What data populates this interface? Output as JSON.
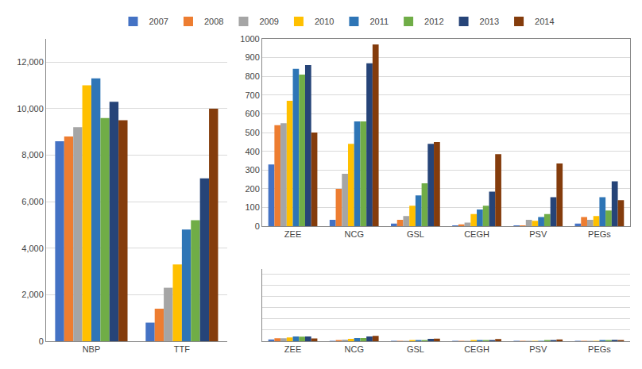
{
  "chart_data": [
    {
      "type": "bar",
      "categories": [
        "NBP",
        "TTF"
      ],
      "series": [
        {
          "name": "2007",
          "color": "#4472C4",
          "values": [
            8600,
            800
          ]
        },
        {
          "name": "2008",
          "color": "#ED7D31",
          "values": [
            8800,
            1400
          ]
        },
        {
          "name": "2009",
          "color": "#A5A5A5",
          "values": [
            9200,
            2300
          ]
        },
        {
          "name": "2010",
          "color": "#FFC000",
          "values": [
            11000,
            3300
          ]
        },
        {
          "name": "2011",
          "color": "#2E75B6",
          "values": [
            11300,
            4800
          ]
        },
        {
          "name": "2012",
          "color": "#70AD47",
          "values": [
            9600,
            5200
          ]
        },
        {
          "name": "2013",
          "color": "#264478",
          "values": [
            10300,
            7000
          ]
        },
        {
          "name": "2014",
          "color": "#843C0C",
          "values": [
            9500,
            10000
          ]
        }
      ],
      "ylim": [
        0,
        13000
      ],
      "yticks": [
        0,
        {
          "value": 2000,
          "label": "2,000"
        },
        {
          "value": 4000,
          "label": "4,000"
        },
        {
          "value": 6000,
          "label": "6,000"
        },
        {
          "value": 8000,
          "label": "8,000"
        },
        {
          "value": 10000,
          "label": "10,000"
        },
        {
          "value": 12000,
          "label": "12,000"
        }
      ],
      "grid": true,
      "legend": "top"
    },
    {
      "type": "bar",
      "categories": [
        "ZEE",
        "NCG",
        "GSL",
        "CEGH",
        "PSV",
        "PEGs"
      ],
      "series": [
        {
          "name": "2007",
          "color": "#4472C4",
          "values": [
            330,
            35,
            15,
            5,
            5,
            15
          ]
        },
        {
          "name": "2008",
          "color": "#ED7D31",
          "values": [
            540,
            200,
            35,
            10,
            5,
            50
          ]
        },
        {
          "name": "2009",
          "color": "#A5A5A5",
          "values": [
            550,
            280,
            55,
            20,
            35,
            35
          ]
        },
        {
          "name": "2010",
          "color": "#FFC000",
          "values": [
            670,
            440,
            110,
            65,
            30,
            55
          ]
        },
        {
          "name": "2011",
          "color": "#2E75B6",
          "values": [
            840,
            560,
            165,
            90,
            50,
            155
          ]
        },
        {
          "name": "2012",
          "color": "#70AD47",
          "values": [
            810,
            560,
            230,
            110,
            65,
            85
          ]
        },
        {
          "name": "2013",
          "color": "#264478",
          "values": [
            860,
            870,
            440,
            185,
            155,
            240
          ]
        },
        {
          "name": "2014",
          "color": "#843C0C",
          "values": [
            500,
            970,
            450,
            385,
            335,
            140
          ]
        }
      ],
      "ylim": [
        0,
        13000
      ],
      "yticks": [
        0,
        2000,
        4000,
        6000,
        8000,
        10000,
        12000
      ],
      "grid": true,
      "tick_labels": "x"
    },
    {
      "type": "bar",
      "categories": [
        "ZEE",
        "NCG",
        "GSL",
        "CEGH",
        "PSV",
        "PEGs"
      ],
      "series": [
        {
          "name": "2007",
          "color": "#4472C4",
          "values": [
            330,
            35,
            15,
            5,
            5,
            15
          ]
        },
        {
          "name": "2008",
          "color": "#ED7D31",
          "values": [
            540,
            200,
            35,
            10,
            5,
            50
          ]
        },
        {
          "name": "2009",
          "color": "#A5A5A5",
          "values": [
            550,
            280,
            55,
            20,
            35,
            35
          ]
        },
        {
          "name": "2010",
          "color": "#FFC000",
          "values": [
            670,
            440,
            110,
            65,
            30,
            55
          ]
        },
        {
          "name": "2011",
          "color": "#2E75B6",
          "values": [
            840,
            560,
            165,
            90,
            50,
            155
          ]
        },
        {
          "name": "2012",
          "color": "#70AD47",
          "values": [
            810,
            560,
            230,
            110,
            65,
            85
          ]
        },
        {
          "name": "2013",
          "color": "#264478",
          "values": [
            860,
            870,
            440,
            185,
            155,
            240
          ]
        },
        {
          "name": "2014",
          "color": "#843C0C",
          "values": [
            500,
            970,
            450,
            385,
            335,
            140
          ]
        }
      ],
      "ylim": [
        0,
        1000
      ],
      "yticks": [
        0,
        100,
        200,
        300,
        400,
        500,
        600,
        700,
        800,
        900,
        1000
      ],
      "grid": true
    }
  ]
}
